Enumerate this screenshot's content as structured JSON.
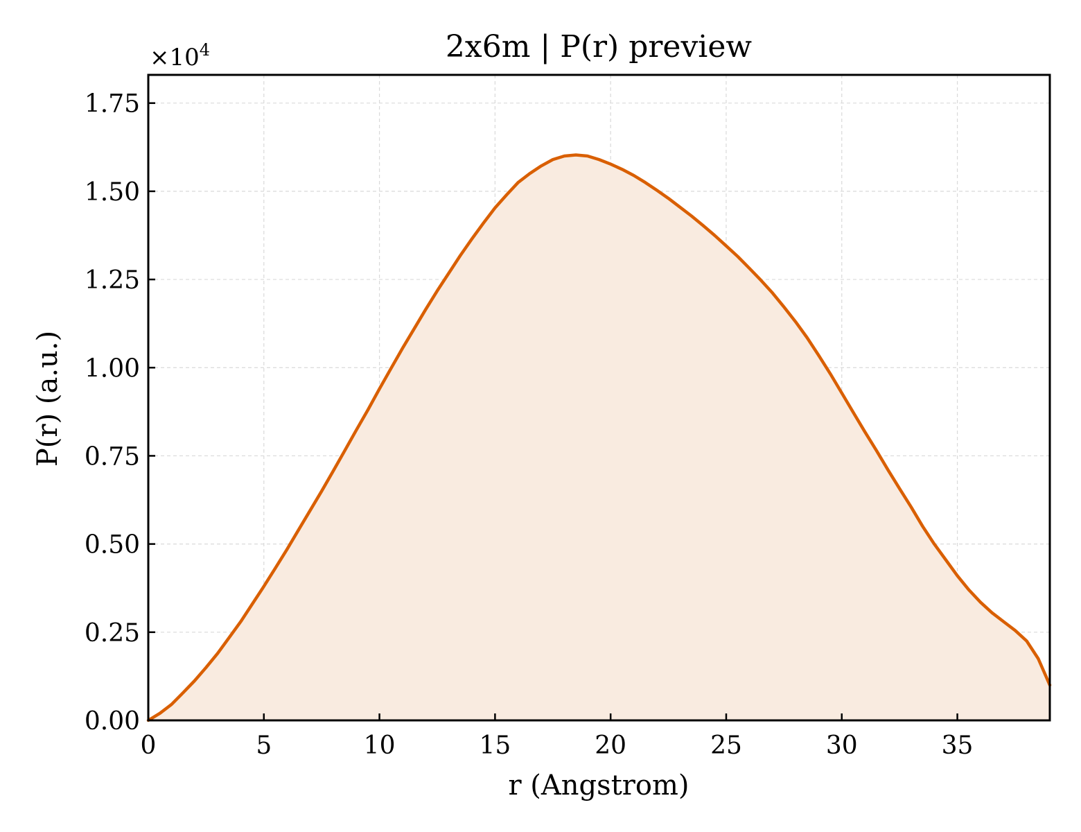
{
  "chart_data": {
    "type": "area",
    "title": "2x6m | P(r) preview",
    "xlabel": "r (Angstrom)",
    "ylabel": "P(r) (a.u.)",
    "y_multiplier_label": "×10",
    "y_multiplier_exponent": "4",
    "xlim": [
      0,
      39
    ],
    "ylim": [
      0,
      1.83
    ],
    "grid": true,
    "x_ticks": [
      0,
      5,
      10,
      15,
      20,
      25,
      30,
      35
    ],
    "x_tick_labels": [
      "0",
      "5",
      "10",
      "15",
      "20",
      "25",
      "30",
      "35"
    ],
    "y_ticks": [
      0,
      0.25,
      0.5,
      0.75,
      1.0,
      1.25,
      1.5,
      1.75
    ],
    "y_tick_labels": [
      "0.00",
      "0.25",
      "0.50",
      "0.75",
      "1.00",
      "1.25",
      "1.50",
      "1.75"
    ],
    "colors": {
      "line": "#d95f02",
      "fill": "#f9ebe0",
      "grid": "#d9d9d9"
    },
    "series": [
      {
        "x": [
          0,
          0.5,
          1,
          1.5,
          2,
          2.5,
          3,
          3.5,
          4,
          4.5,
          5,
          5.5,
          6,
          6.5,
          7,
          7.5,
          8,
          8.5,
          9,
          9.5,
          10,
          10.5,
          11,
          11.5,
          12,
          12.5,
          13,
          13.5,
          14,
          14.5,
          15,
          15.5,
          16,
          16.5,
          17,
          17.5,
          18,
          18.5,
          19,
          19.5,
          20,
          20.5,
          21,
          21.5,
          22,
          22.5,
          23,
          23.5,
          24,
          24.5,
          25,
          25.5,
          26,
          26.5,
          27,
          27.5,
          28,
          28.5,
          29,
          29.5,
          30,
          30.5,
          31,
          31.5,
          32,
          32.5,
          33,
          33.5,
          34,
          34.5,
          35,
          35.5,
          36,
          36.5,
          37,
          37.5,
          38,
          38.5,
          39
        ],
        "y": [
          0,
          0.02,
          0.045,
          0.078,
          0.112,
          0.15,
          0.19,
          0.235,
          0.28,
          0.33,
          0.38,
          0.432,
          0.485,
          0.54,
          0.595,
          0.65,
          0.707,
          0.765,
          0.823,
          0.88,
          0.94,
          0.998,
          1.055,
          1.11,
          1.165,
          1.218,
          1.268,
          1.318,
          1.365,
          1.41,
          1.453,
          1.49,
          1.525,
          1.55,
          1.572,
          1.59,
          1.6,
          1.603,
          1.6,
          1.59,
          1.577,
          1.562,
          1.545,
          1.525,
          1.503,
          1.48,
          1.455,
          1.43,
          1.403,
          1.375,
          1.345,
          1.315,
          1.282,
          1.248,
          1.212,
          1.172,
          1.13,
          1.085,
          1.035,
          0.983,
          0.928,
          0.873,
          0.818,
          0.765,
          0.71,
          0.657,
          0.605,
          0.55,
          0.5,
          0.455,
          0.41,
          0.37,
          0.335,
          0.305,
          0.28,
          0.255,
          0.225,
          0.175,
          0.1
        ]
      }
    ]
  }
}
